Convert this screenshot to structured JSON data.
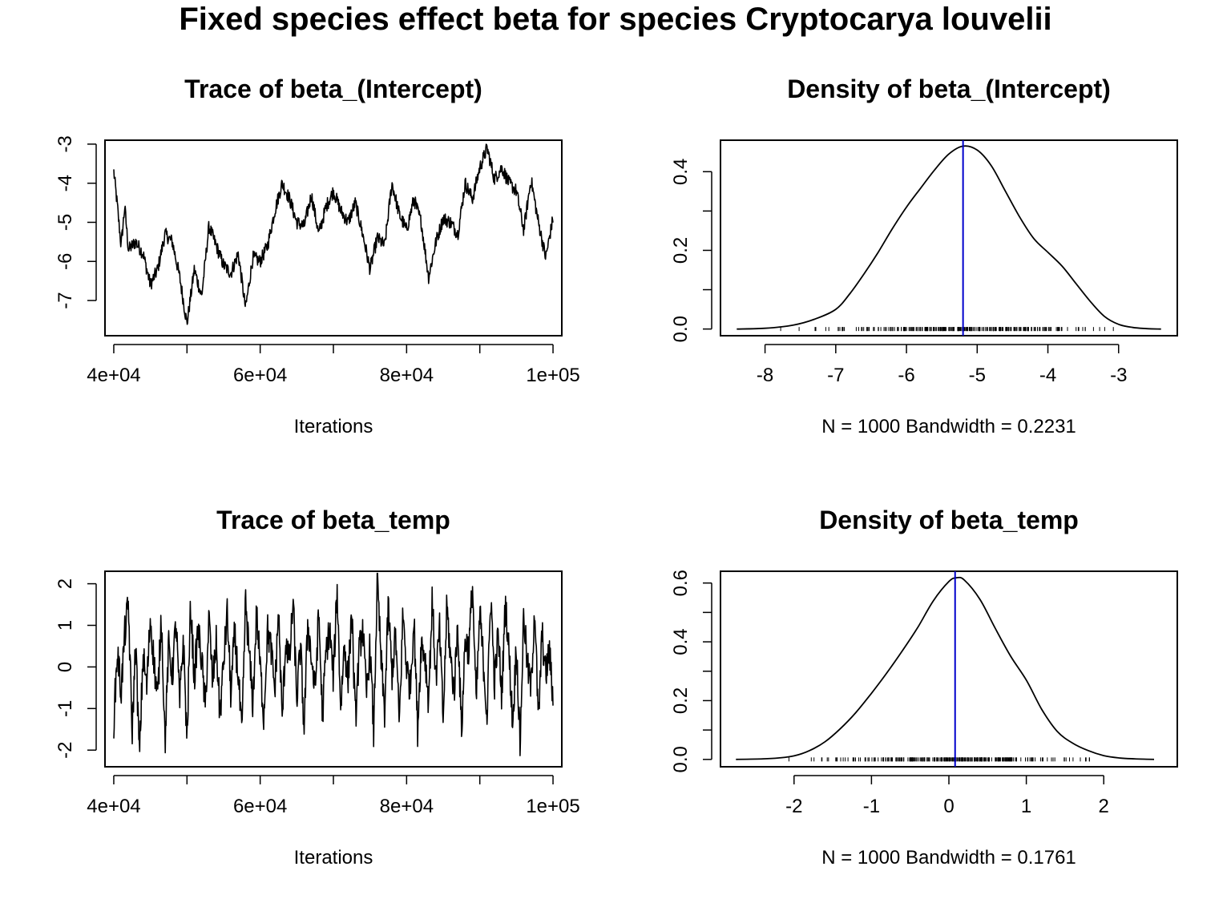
{
  "title": "Fixed species effect beta for species Cryptocarya louvelii",
  "colors": {
    "line": "#000000",
    "mean_line": "#0000CC",
    "background": "#FFFFFF"
  },
  "chart_data": [
    {
      "type": "line",
      "title": "Trace of beta_(Intercept)",
      "xlabel": "Iterations",
      "ylabel": "",
      "xlim": [
        38800,
        101200
      ],
      "ylim": [
        -7.9,
        -2.9
      ],
      "x_ticks": [
        40000,
        50000,
        60000,
        70000,
        80000,
        90000,
        100000
      ],
      "x_tick_labels": [
        "4e+04",
        "",
        "6e+04",
        "",
        "8e+04",
        "",
        "1e+05"
      ],
      "y_ticks": [
        -7,
        -6,
        -5,
        -4,
        -3
      ],
      "y_tick_labels": [
        "-7",
        "-6",
        "-5",
        "-4",
        "-3"
      ],
      "iterations": {
        "start": 40000,
        "end": 100000,
        "samples": 1000
      },
      "series": [
        {
          "x": [
            40000,
            40500,
            41000,
            41500,
            42000,
            43000,
            44000,
            45000,
            46000,
            47000,
            48000,
            49000,
            50000,
            51000,
            52000,
            53000,
            54000,
            55000,
            56000,
            57000,
            58000,
            59000,
            60000,
            61000,
            62000,
            63000,
            64000,
            65000,
            66000,
            67000,
            68000,
            69000,
            70000,
            71000,
            72000,
            73000,
            74000,
            75000,
            76000,
            77000,
            78000,
            79000,
            80000,
            81000,
            82000,
            83000,
            84000,
            85000,
            86000,
            87000,
            88000,
            89000,
            90000,
            91000,
            92000,
            93000,
            94000,
            95000,
            96000,
            97000,
            98000,
            99000,
            100000
          ],
          "values": [
            -3.7,
            -4.6,
            -5.6,
            -4.6,
            -5.7,
            -5.5,
            -5.8,
            -6.6,
            -6.2,
            -5.3,
            -5.5,
            -6.4,
            -7.6,
            -6.2,
            -6.9,
            -5.1,
            -5.6,
            -6.1,
            -6.3,
            -5.8,
            -7.2,
            -5.9,
            -6.0,
            -5.6,
            -4.7,
            -4.0,
            -4.4,
            -5.0,
            -5.1,
            -4.3,
            -5.3,
            -4.6,
            -4.2,
            -4.7,
            -5.0,
            -4.5,
            -5.3,
            -6.2,
            -5.4,
            -5.6,
            -4.0,
            -4.8,
            -5.2,
            -4.4,
            -5.0,
            -6.4,
            -5.5,
            -4.9,
            -5.0,
            -5.3,
            -4.0,
            -4.4,
            -3.6,
            -3.1,
            -3.9,
            -3.6,
            -4.0,
            -4.2,
            -5.2,
            -3.9,
            -5.0,
            -5.9,
            -4.9
          ]
        }
      ]
    },
    {
      "type": "area",
      "title": "Density of beta_(Intercept)",
      "xlabel": "N = 1000   Bandwidth = 0.2231",
      "ylabel": "",
      "xlim": [
        -8.63,
        -2.17
      ],
      "ylim": [
        -0.017,
        0.48
      ],
      "x_ticks": [
        -8,
        -7,
        -6,
        -5,
        -4,
        -3
      ],
      "x_tick_labels": [
        "-8",
        "-7",
        "-6",
        "-5",
        "-4",
        "-3"
      ],
      "y_ticks": [
        0.0,
        0.1,
        0.2,
        0.3,
        0.4
      ],
      "y_tick_labels": [
        "0.0",
        "",
        "0.2",
        "",
        "0.4"
      ],
      "mean": -5.2,
      "series": [
        {
          "x": [
            -8.4,
            -8.0,
            -7.6,
            -7.3,
            -7.0,
            -6.8,
            -6.6,
            -6.4,
            -6.2,
            -6.0,
            -5.8,
            -5.6,
            -5.4,
            -5.2,
            -5.0,
            -4.8,
            -4.6,
            -4.4,
            -4.2,
            -4.0,
            -3.8,
            -3.6,
            -3.4,
            -3.2,
            -3.0,
            -2.8,
            -2.6,
            -2.4
          ],
          "values": [
            0.0,
            0.002,
            0.01,
            0.025,
            0.05,
            0.09,
            0.14,
            0.195,
            0.255,
            0.31,
            0.358,
            0.405,
            0.445,
            0.465,
            0.455,
            0.415,
            0.35,
            0.285,
            0.23,
            0.195,
            0.16,
            0.115,
            0.07,
            0.032,
            0.012,
            0.004,
            0.001,
            0.0
          ]
        }
      ]
    },
    {
      "type": "line",
      "title": "Trace of beta_temp",
      "xlabel": "Iterations",
      "ylabel": "",
      "xlim": [
        38800,
        101200
      ],
      "ylim": [
        -2.4,
        2.3
      ],
      "x_ticks": [
        40000,
        50000,
        60000,
        70000,
        80000,
        90000,
        100000
      ],
      "x_tick_labels": [
        "4e+04",
        "",
        "6e+04",
        "",
        "8e+04",
        "",
        "1e+05"
      ],
      "y_ticks": [
        -2,
        -1,
        0,
        1,
        2
      ],
      "y_tick_labels": [
        "-2",
        "-1",
        "0",
        "1",
        "2"
      ],
      "iterations": {
        "start": 40000,
        "end": 100000,
        "samples": 1000
      },
      "series": [
        {
          "x": [
            40000,
            40500,
            41000,
            41500,
            42000,
            42500,
            43000,
            43500,
            44000,
            44500,
            45000,
            45500,
            46000,
            46500,
            47000,
            47500,
            48000,
            48500,
            49000,
            49500,
            50000,
            50500,
            51000,
            51500,
            52000,
            52500,
            53000,
            53500,
            54000,
            54500,
            55000,
            55500,
            56000,
            56500,
            57000,
            57500,
            58000,
            58500,
            59000,
            59500,
            60000,
            60500,
            61000,
            61500,
            62000,
            62500,
            63000,
            63500,
            64000,
            64500,
            65000,
            65500,
            66000,
            66500,
            67000,
            67500,
            68000,
            68500,
            69000,
            69500,
            70000,
            70500,
            71000,
            71500,
            72000,
            72500,
            73000,
            73500,
            74000,
            74500,
            75000,
            75500,
            76000,
            76500,
            77000,
            77500,
            78000,
            78500,
            79000,
            79500,
            80000,
            80500,
            81000,
            81500,
            82000,
            82500,
            83000,
            83500,
            84000,
            84500,
            85000,
            85500,
            86000,
            86500,
            87000,
            87500,
            88000,
            88500,
            89000,
            89500,
            90000,
            90500,
            91000,
            91500,
            92000,
            92500,
            93000,
            93500,
            94000,
            94500,
            95000,
            95500,
            96000,
            96500,
            97000,
            97500,
            98000,
            98500,
            99000,
            99500,
            100000
          ],
          "values": [
            -1.3,
            0.4,
            -0.6,
            0.8,
            1.5,
            -1.6,
            0.6,
            -2.2,
            0.3,
            -0.5,
            1.2,
            0.1,
            -0.8,
            1.3,
            -1.8,
            0.5,
            -0.2,
            1.1,
            -0.9,
            0.7,
            -1.8,
            1.5,
            -0.3,
            0.9,
            0.2,
            -1.0,
            1.2,
            -0.4,
            0.6,
            -1.2,
            0.1,
            1.3,
            -0.7,
            0.8,
            -0.2,
            -1.7,
            1.6,
            0.3,
            -0.9,
            1.3,
            0.0,
            -1.2,
            0.9,
            0.4,
            -0.6,
            1.4,
            -1.3,
            0.7,
            0.1,
            1.6,
            -0.8,
            0.5,
            -1.5,
            1.1,
            0.2,
            -0.6,
            1.3,
            -1.2,
            0.4,
            0.9,
            -0.3,
            1.9,
            -1.0,
            0.6,
            -0.4,
            1.4,
            -1.3,
            0.3,
            1.0,
            -0.7,
            0.5,
            -1.6,
            2.1,
            0.2,
            -1.1,
            1.5,
            -0.2,
            0.8,
            -1.4,
            1.3,
            0.0,
            -0.5,
            1.2,
            -1.5,
            0.6,
            0.3,
            -0.8,
            1.6,
            -0.3,
            0.9,
            -1.3,
            1.5,
            0.2,
            -0.6,
            1.1,
            -1.6,
            0.7,
            0.4,
            2.0,
            -0.9,
            1.3,
            0.1,
            -1.2,
            1.8,
            -0.4,
            0.8,
            -0.7,
            1.6,
            0.3,
            -1.4,
            0.6,
            -1.9,
            1.3,
            0.0,
            -0.5,
            1.5,
            -1.4,
            0.8,
            -0.2,
            0.4,
            -0.8
          ]
        }
      ]
    },
    {
      "type": "area",
      "title": "Density of beta_temp",
      "xlabel": "N = 1000   Bandwidth = 0.1761",
      "ylabel": "",
      "xlim": [
        -2.95,
        2.95
      ],
      "ylim": [
        -0.025,
        0.64
      ],
      "x_ticks": [
        -2,
        -1,
        0,
        1,
        2
      ],
      "x_tick_labels": [
        "-2",
        "-1",
        "0",
        "1",
        "2"
      ],
      "y_ticks": [
        0.0,
        0.1,
        0.2,
        0.3,
        0.4,
        0.5,
        0.6
      ],
      "y_tick_labels": [
        "0.0",
        "",
        "0.2",
        "",
        "0.4",
        "",
        "0.6"
      ],
      "mean": 0.08,
      "series": [
        {
          "x": [
            -2.75,
            -2.4,
            -2.2,
            -2.0,
            -1.8,
            -1.6,
            -1.4,
            -1.2,
            -1.0,
            -0.8,
            -0.6,
            -0.4,
            -0.2,
            0.0,
            0.1,
            0.2,
            0.4,
            0.6,
            0.8,
            1.0,
            1.2,
            1.4,
            1.6,
            1.8,
            2.0,
            2.2,
            2.4,
            2.65
          ],
          "values": [
            0.0,
            0.002,
            0.005,
            0.012,
            0.03,
            0.06,
            0.105,
            0.16,
            0.225,
            0.295,
            0.37,
            0.45,
            0.54,
            0.605,
            0.618,
            0.61,
            0.545,
            0.445,
            0.35,
            0.27,
            0.17,
            0.095,
            0.055,
            0.03,
            0.013,
            0.005,
            0.002,
            0.0
          ]
        }
      ]
    }
  ]
}
